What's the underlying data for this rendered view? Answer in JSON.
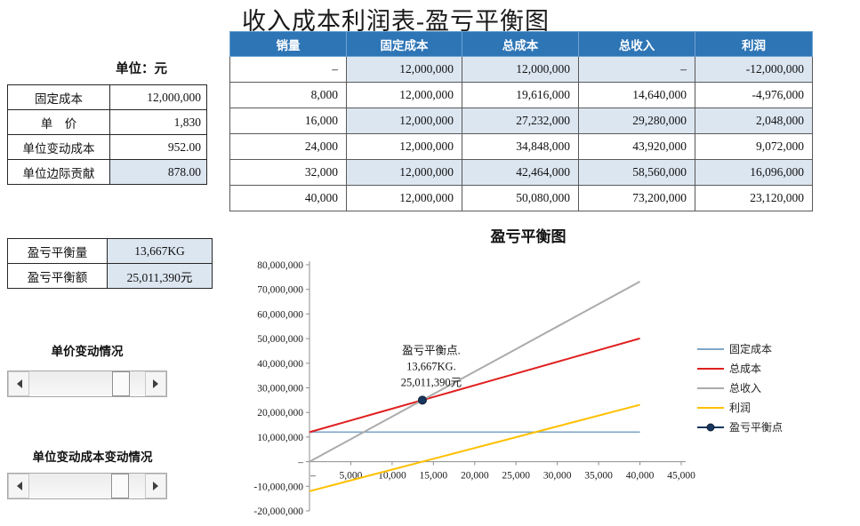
{
  "title": "收入成本利润表-盈亏平衡图",
  "colors": {
    "header_bg": "#2e75b6",
    "band": "#dce6f1"
  },
  "left_panel": {
    "unit_label": "单位：元",
    "params_table": {
      "rows": [
        {
          "label": "固定成本",
          "value": "12,000,000"
        },
        {
          "label": "单　价",
          "value": "1,830"
        },
        {
          "label": "单位变动成本",
          "value": "952.00"
        },
        {
          "label": "单位边际贡献",
          "value": "878.00"
        }
      ]
    },
    "breakeven_table": {
      "rows": [
        {
          "label": "盈亏平衡量",
          "value": "13,667KG"
        },
        {
          "label": "盈亏平衡额",
          "value": "25,011,390元"
        }
      ]
    },
    "price_scroll_label": "单价变动情况",
    "cost_scroll_label": "单位变动成本变动情况"
  },
  "main_table": {
    "headers": [
      "销量",
      "固定成本",
      "总成本",
      "总收入",
      "利润"
    ],
    "rows": [
      [
        "–",
        "12,000,000",
        "12,000,000",
        "–",
        "-12,000,000"
      ],
      [
        "8,000",
        "12,000,000",
        "19,616,000",
        "14,640,000",
        "-4,976,000"
      ],
      [
        "16,000",
        "12,000,000",
        "27,232,000",
        "29,280,000",
        "2,048,000"
      ],
      [
        "24,000",
        "12,000,000",
        "34,848,000",
        "43,920,000",
        "9,072,000"
      ],
      [
        "32,000",
        "12,000,000",
        "42,464,000",
        "58,560,000",
        "16,096,000"
      ],
      [
        "40,000",
        "12,000,000",
        "50,080,000",
        "73,200,000",
        "23,120,000"
      ]
    ]
  },
  "chart_data": {
    "type": "line",
    "title": "盈亏平衡图",
    "x": [
      0,
      8000,
      16000,
      24000,
      32000,
      40000
    ],
    "series": [
      {
        "name": "固定成本",
        "color": "#7ea6c8",
        "values": [
          12000000,
          12000000,
          12000000,
          12000000,
          12000000,
          12000000
        ]
      },
      {
        "name": "总成本",
        "color": "#e02020",
        "values": [
          12000000,
          19616000,
          27232000,
          34848000,
          42464000,
          50080000
        ]
      },
      {
        "name": "总收入",
        "color": "#ababab",
        "values": [
          0,
          14640000,
          29280000,
          43920000,
          58560000,
          73200000
        ]
      },
      {
        "name": "利润",
        "color": "#ffc000",
        "values": [
          -12000000,
          -4976000,
          2048000,
          9072000,
          16096000,
          23120000
        ]
      }
    ],
    "point_series": {
      "name": "盈亏平衡点",
      "color": "#17375e",
      "x": 13667,
      "y": 25011390
    },
    "annotation": [
      "盈亏平衡点.",
      "13,667KG.",
      "25,011,390元"
    ],
    "xlim": [
      0,
      45000
    ],
    "x_tick_step": 5000,
    "ylim": [
      -20000000,
      80000000
    ],
    "y_tick_step": 10000000,
    "x_tick_labels": [
      "–",
      "5,000",
      "10,000",
      "15,000",
      "20,000",
      "25,000",
      "30,000",
      "35,000",
      "40,000",
      "45,000"
    ],
    "y_tick_labels": [
      "80,000,000",
      "70,000,000",
      "60,000,000",
      "50,000,000",
      "40,000,000",
      "30,000,000",
      "20,000,000",
      "10,000,000",
      "–",
      "-10,000,000",
      "-20,000,000"
    ],
    "legend_position": "right",
    "grid": false
  }
}
